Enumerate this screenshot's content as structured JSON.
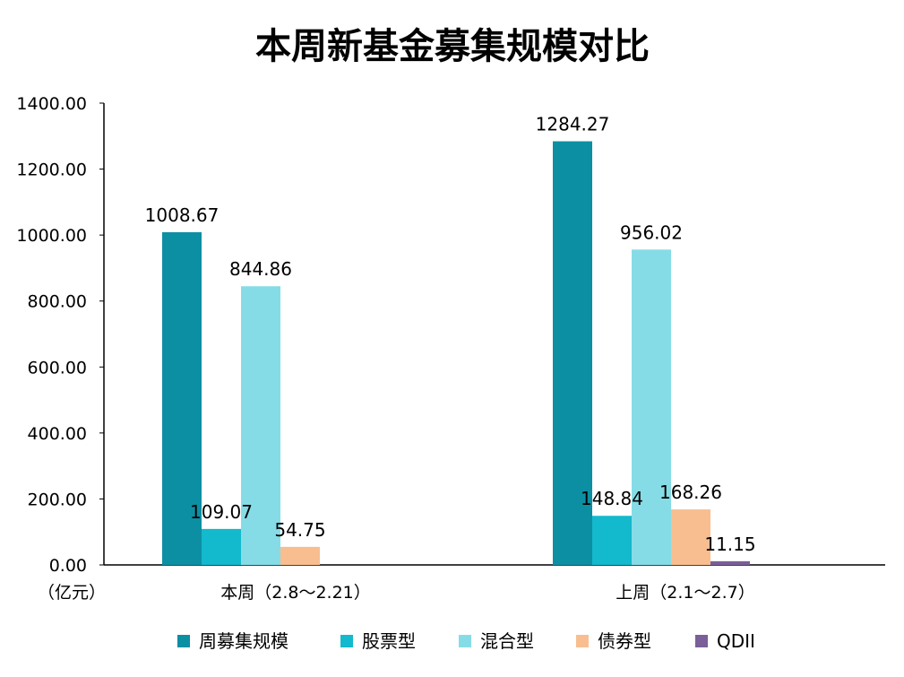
{
  "chart_data": {
    "type": "bar",
    "title": "本周新基金募集规模对比",
    "ylabel": "（亿元）",
    "ylim": [
      0,
      1400
    ],
    "yticks": [
      "0.00",
      "200.00",
      "400.00",
      "600.00",
      "800.00",
      "1000.00",
      "1200.00",
      "1400.00"
    ],
    "categories": [
      "本周（2.8～2.21）",
      "上周（2.1～2.7）"
    ],
    "series": [
      {
        "name": "周募集规模",
        "color": "#0c8fa3",
        "values": [
          1008.67,
          1284.27
        ],
        "labels": [
          "1008.67",
          "1284.27"
        ]
      },
      {
        "name": "股票型",
        "color": "#13b9cc",
        "values": [
          109.07,
          148.84
        ],
        "labels": [
          "109.07",
          "148.84"
        ]
      },
      {
        "name": "混合型",
        "color": "#86dce6",
        "values": [
          844.86,
          956.02
        ],
        "labels": [
          "844.86",
          "956.02"
        ]
      },
      {
        "name": "债券型",
        "color": "#f8be90",
        "values": [
          54.75,
          168.26
        ],
        "labels": [
          "54.75",
          "168.26"
        ]
      },
      {
        "name": "QDII",
        "color": "#7a5f98",
        "values": [
          null,
          11.15
        ],
        "labels": [
          "",
          "11.15"
        ]
      }
    ],
    "grid": false,
    "legend": "bottom"
  }
}
